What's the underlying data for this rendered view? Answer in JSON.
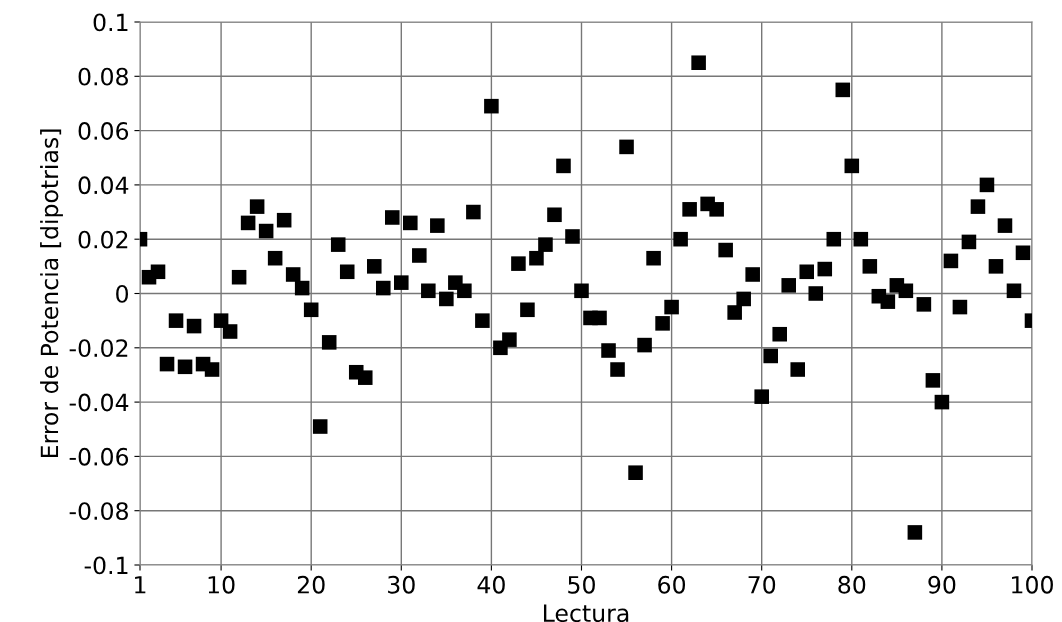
{
  "chart_data": {
    "type": "scatter",
    "xlabel": "Lectura",
    "ylabel": "Error de Potencia [dipotrias]",
    "x": [
      1,
      2,
      3,
      4,
      5,
      6,
      7,
      8,
      9,
      10,
      11,
      12,
      13,
      14,
      15,
      16,
      17,
      18,
      19,
      20,
      21,
      22,
      23,
      24,
      25,
      26,
      27,
      28,
      29,
      30,
      31,
      32,
      33,
      34,
      35,
      36,
      37,
      38,
      39,
      40,
      41,
      42,
      43,
      44,
      45,
      46,
      47,
      48,
      49,
      50,
      51,
      52,
      53,
      54,
      55,
      56,
      57,
      58,
      59,
      60,
      61,
      62,
      63,
      64,
      65,
      66,
      67,
      68,
      69,
      70,
      71,
      72,
      73,
      74,
      75,
      76,
      77,
      78,
      79,
      80,
      81,
      82,
      83,
      84,
      85,
      86,
      87,
      88,
      89,
      90,
      91,
      92,
      93,
      94,
      95,
      96,
      97,
      98,
      99,
      100
    ],
    "series": [
      {
        "color": "#000000",
        "values": [
          0.02,
          0.006,
          0.008,
          -0.026,
          -0.01,
          -0.027,
          -0.012,
          -0.026,
          -0.028,
          -0.01,
          -0.014,
          0.006,
          0.026,
          0.032,
          0.023,
          0.013,
          0.027,
          0.007,
          0.002,
          -0.006,
          -0.049,
          -0.018,
          0.018,
          0.008,
          -0.029,
          -0.031,
          0.01,
          0.002,
          0.028,
          0.004,
          0.026,
          0.014,
          0.001,
          0.025,
          -0.002,
          0.004,
          0.001,
          0.03,
          -0.01,
          0.069,
          -0.02,
          -0.017,
          0.011,
          -0.006,
          0.013,
          0.018,
          0.029,
          0.047,
          0.021,
          0.001,
          -0.009,
          -0.009,
          -0.021,
          -0.028,
          0.054,
          -0.066,
          -0.019,
          0.013,
          -0.011,
          -0.005,
          0.02,
          0.031,
          0.085,
          0.033,
          0.031,
          0.016,
          -0.007,
          -0.002,
          0.007,
          -0.038,
          -0.023,
          -0.015,
          0.003,
          -0.028,
          0.008,
          0.0,
          0.009,
          0.02,
          0.075,
          0.047,
          0.02,
          0.01,
          -0.001,
          -0.003,
          0.003,
          0.001,
          -0.088,
          -0.004,
          -0.032,
          -0.04,
          0.012,
          -0.005,
          0.019,
          0.032,
          0.04,
          0.01,
          0.025,
          0.001,
          0.015,
          -0.01
        ]
      }
    ],
    "xlim": [
      1,
      100
    ],
    "xticks": [
      1,
      10,
      20,
      30,
      40,
      50,
      60,
      70,
      80,
      90,
      100
    ],
    "ylim": [
      -0.1,
      0.1
    ],
    "yticks": [
      -0.1,
      -0.08,
      -0.06,
      -0.04,
      -0.02,
      0,
      0.02,
      0.04,
      0.06,
      0.08,
      0.1
    ],
    "grid": true,
    "marker": "square"
  }
}
